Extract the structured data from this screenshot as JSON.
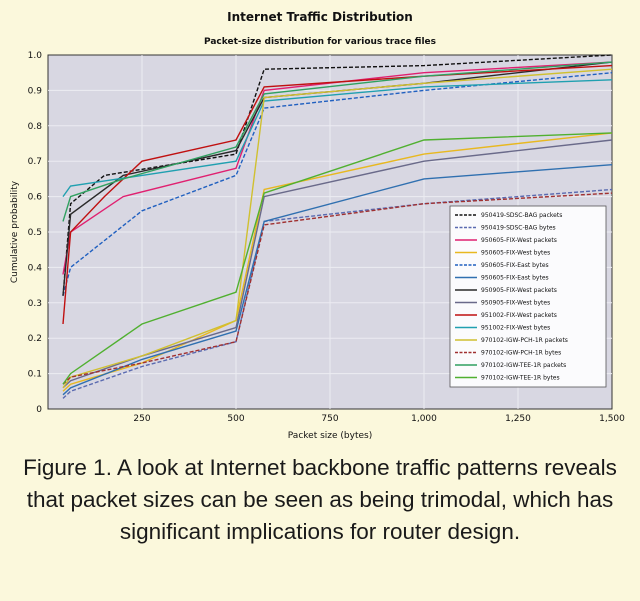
{
  "chart_data": {
    "type": "line",
    "title": "Internet Traffic Distribution",
    "subtitle": "Packet-size distribution for various trace files",
    "xlabel": "Packet size (bytes)",
    "ylabel": "Cumulative probability",
    "xlim": [
      0,
      1500
    ],
    "ylim": [
      0,
      1.0
    ],
    "x_ticks": [
      250,
      500,
      750,
      1000,
      1250,
      1500
    ],
    "x_tick_labels": [
      "250",
      "500",
      "750",
      "1,000",
      "1,250",
      "1,500"
    ],
    "y_ticks": [
      0,
      0.1,
      0.2,
      0.3,
      0.4,
      0.5,
      0.6,
      0.7,
      0.8,
      0.9,
      1.0
    ],
    "y_tick_labels": [
      "0",
      "0.1",
      "0.2",
      "0.3",
      "0.4",
      "0.5",
      "0.6",
      "0.7",
      "0.8",
      "0.9",
      "1.0"
    ],
    "grid": true,
    "legend_position": "lower-right",
    "series": [
      {
        "name": "950419-SDSC-BAG packets",
        "color": "#111111",
        "dash": true,
        "x": [
          40,
          60,
          150,
          500,
          575,
          1000,
          1500
        ],
        "y": [
          0.32,
          0.58,
          0.66,
          0.72,
          0.96,
          0.97,
          1.0
        ]
      },
      {
        "name": "950419-SDSC-BAG bytes",
        "color": "#5a6ab0",
        "dash": true,
        "x": [
          40,
          60,
          250,
          500,
          575,
          1000,
          1500
        ],
        "y": [
          0.03,
          0.05,
          0.12,
          0.19,
          0.53,
          0.58,
          0.62
        ]
      },
      {
        "name": "950605-FIX-West packets",
        "color": "#e02070",
        "dash": false,
        "x": [
          40,
          60,
          200,
          500,
          575,
          1000,
          1500
        ],
        "y": [
          0.38,
          0.5,
          0.6,
          0.68,
          0.9,
          0.95,
          0.98
        ]
      },
      {
        "name": "950605-FIX-West bytes",
        "color": "#e8b820",
        "dash": false,
        "x": [
          40,
          60,
          250,
          500,
          575,
          1000,
          1500
        ],
        "y": [
          0.05,
          0.07,
          0.13,
          0.25,
          0.62,
          0.72,
          0.78
        ]
      },
      {
        "name": "950605-FIX-East bytes",
        "color": "#2060c0",
        "dash": true,
        "x": [
          40,
          60,
          250,
          500,
          575,
          1000,
          1500
        ],
        "y": [
          0.32,
          0.4,
          0.56,
          0.66,
          0.85,
          0.9,
          0.95
        ]
      },
      {
        "name": "950605-FIX-East bytes",
        "color": "#3070b0",
        "dash": false,
        "x": [
          40,
          60,
          250,
          500,
          575,
          1000,
          1500
        ],
        "y": [
          0.04,
          0.06,
          0.14,
          0.22,
          0.53,
          0.65,
          0.69
        ]
      },
      {
        "name": "950905-FIX-West packets",
        "color": "#2a2a2a",
        "dash": false,
        "x": [
          40,
          60,
          200,
          500,
          575,
          1000,
          1500
        ],
        "y": [
          0.32,
          0.55,
          0.66,
          0.73,
          0.88,
          0.92,
          0.98
        ]
      },
      {
        "name": "950905-FIX-West bytes",
        "color": "#6a6a8a",
        "dash": false,
        "x": [
          40,
          60,
          250,
          500,
          575,
          1000,
          1500
        ],
        "y": [
          0.06,
          0.08,
          0.15,
          0.23,
          0.6,
          0.7,
          0.76
        ]
      },
      {
        "name": "951002-FIX-West packets",
        "color": "#c01010",
        "dash": false,
        "x": [
          40,
          60,
          150,
          250,
          500,
          575,
          1000,
          1500
        ],
        "y": [
          0.24,
          0.5,
          0.6,
          0.7,
          0.76,
          0.91,
          0.94,
          0.97
        ]
      },
      {
        "name": "951002-FIX-West bytes",
        "color": "#20a0b0",
        "dash": false,
        "x": [
          40,
          60,
          250,
          500,
          575,
          1000,
          1500
        ],
        "y": [
          0.6,
          0.63,
          0.66,
          0.7,
          0.87,
          0.91,
          0.93
        ]
      },
      {
        "name": "970102-IGW-PCH-1R packets",
        "color": "#d0c030",
        "dash": false,
        "x": [
          40,
          60,
          250,
          500,
          575,
          1000,
          1500
        ],
        "y": [
          0.06,
          0.09,
          0.15,
          0.25,
          0.88,
          0.92,
          0.96
        ]
      },
      {
        "name": "970102-IGW-PCH-1R bytes",
        "color": "#a03030",
        "dash": true,
        "x": [
          40,
          60,
          250,
          500,
          575,
          1000,
          1500
        ],
        "y": [
          0.07,
          0.09,
          0.13,
          0.19,
          0.52,
          0.58,
          0.61
        ]
      },
      {
        "name": "970102-IGW-TEE-1R packets",
        "color": "#30a060",
        "dash": false,
        "x": [
          40,
          60,
          200,
          500,
          575,
          1000,
          1500
        ],
        "y": [
          0.53,
          0.6,
          0.65,
          0.74,
          0.89,
          0.94,
          0.98
        ]
      },
      {
        "name": "970102-IGW-TEE-1R bytes",
        "color": "#50b030",
        "dash": false,
        "x": [
          40,
          60,
          250,
          500,
          575,
          1000,
          1500
        ],
        "y": [
          0.07,
          0.1,
          0.24,
          0.33,
          0.61,
          0.76,
          0.78
        ]
      }
    ]
  },
  "caption": "Figure 1. A look at Internet backbone traffic patterns reveals that packet sizes can be seen as being trimodal, which has significant implications for router design."
}
